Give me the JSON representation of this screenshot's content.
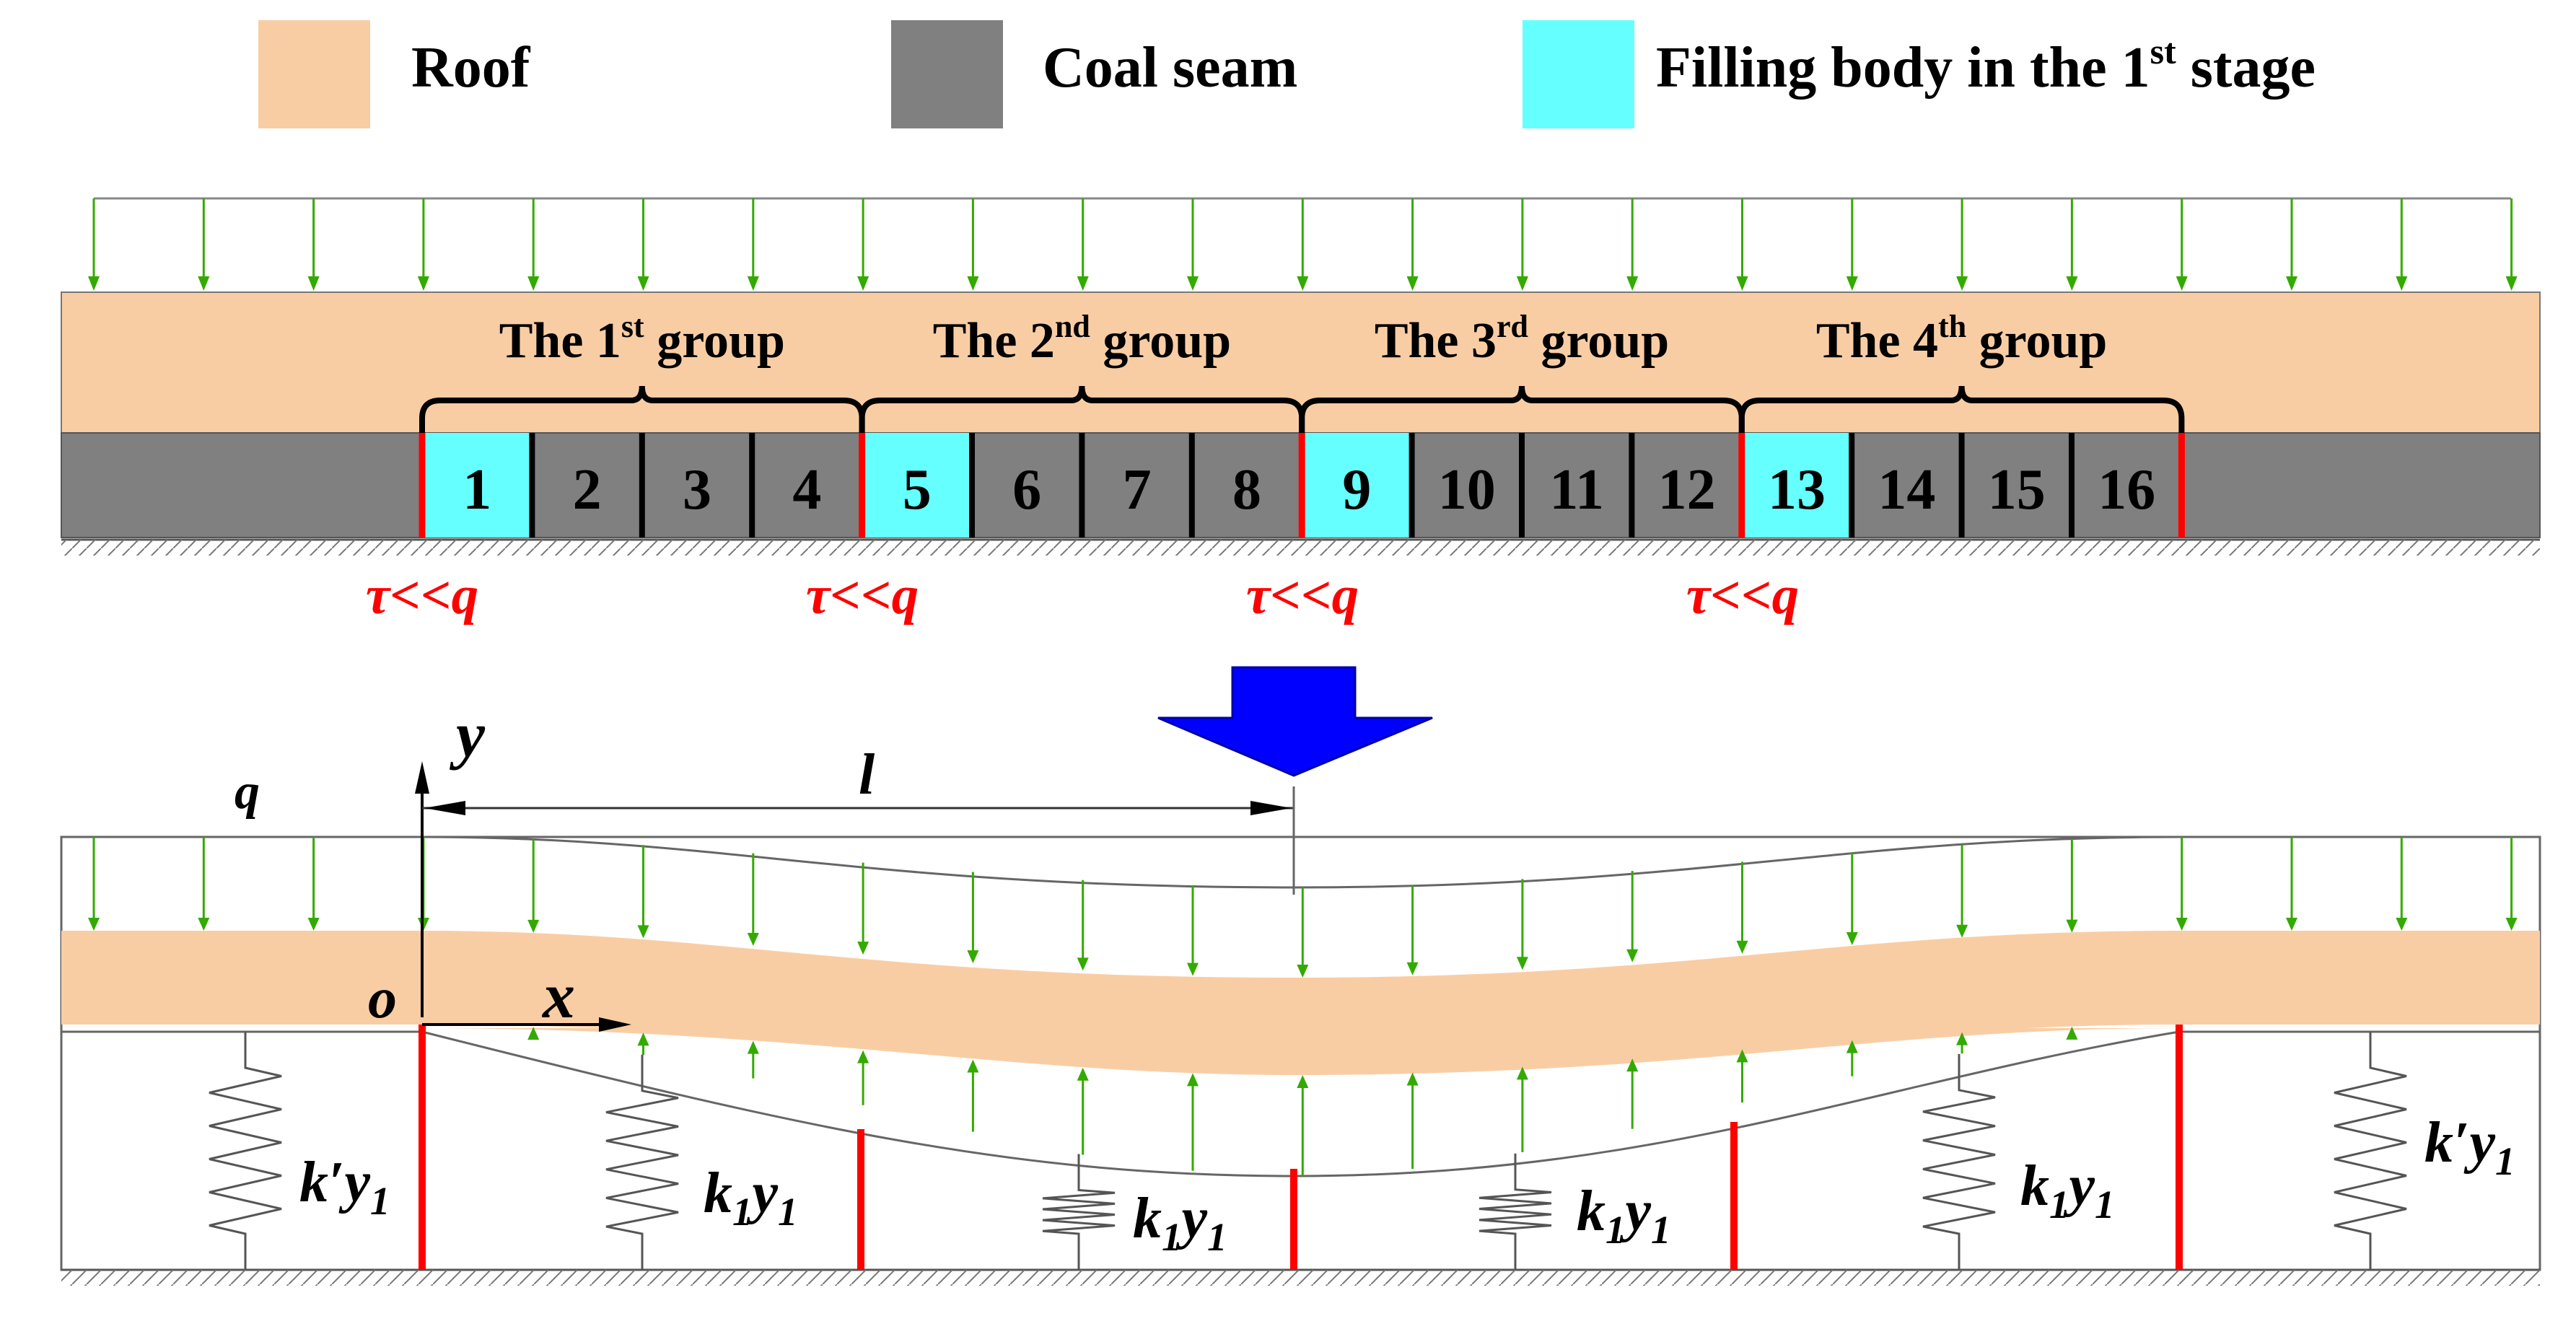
{
  "legend": {
    "roof": {
      "label": "Roof",
      "color": "#f9cda4"
    },
    "coal": {
      "label": "Coal seam",
      "color": "#808080"
    },
    "fill": {
      "label_main": "Filling body in the 1",
      "label_sup": "st",
      "label_end": " stage",
      "color": "#66ffff"
    }
  },
  "groups": [
    {
      "pre": "The 1",
      "sup": "st",
      "post": " group"
    },
    {
      "pre": "The 2",
      "sup": "nd",
      "post": " group"
    },
    {
      "pre": "The 3",
      "sup": "rd",
      "post": " group"
    },
    {
      "pre": "The 4",
      "sup": "th",
      "post": " group"
    }
  ],
  "blocks": [
    "1",
    "2",
    "3",
    "4",
    "5",
    "6",
    "7",
    "8",
    "9",
    "10",
    "11",
    "12",
    "13",
    "14",
    "15",
    "16"
  ],
  "filled_blocks": [
    1,
    5,
    9,
    13
  ],
  "shear": {
    "tau": "τ",
    "rel": "<<",
    "q": "q"
  },
  "model": {
    "q": "q",
    "y": "y",
    "x": "x",
    "o": "o",
    "l": "l",
    "spring_outer": {
      "k": "k′y",
      "sub": "1"
    },
    "spring_inner": {
      "k": "k",
      "ksub": "1",
      "y": "y",
      "ysub": "1"
    }
  },
  "colors": {
    "load_arrow": "#33aa00",
    "support_red": "#ff0000",
    "big_arrow": "#0000ff",
    "outline": "#555555"
  }
}
